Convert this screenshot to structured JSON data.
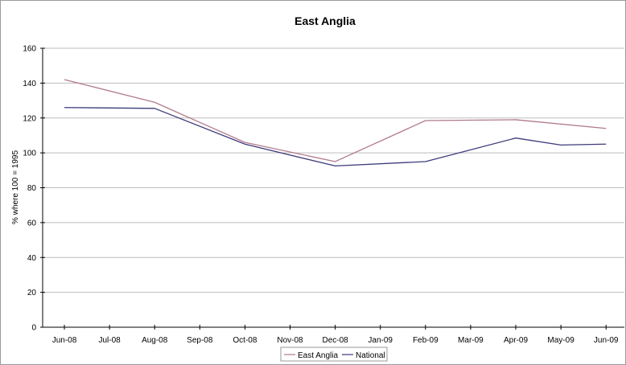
{
  "chart_data": {
    "type": "line",
    "title": "East Anglia",
    "xlabel": "",
    "ylabel": "% where 100 = 1995",
    "ylim": [
      0,
      160
    ],
    "yticks": [
      0,
      20,
      40,
      60,
      80,
      100,
      120,
      140,
      160
    ],
    "grid": true,
    "legend_position": "bottom-center",
    "categories": [
      "Jun-08",
      "Jul-08",
      "Aug-08",
      "Sep-08",
      "Oct-08",
      "Nov-08",
      "Dec-08",
      "Jan-09",
      "Feb-09",
      "Mar-09",
      "Apr-09",
      "May-09",
      "Jun-09"
    ],
    "series": [
      {
        "name": "East Anglia",
        "color": "#b07a8c",
        "points": [
          {
            "x": "Jun-08",
            "y": 142
          },
          {
            "x": "Aug-08",
            "y": 129
          },
          {
            "x": "Oct-08",
            "y": 106
          },
          {
            "x": "Dec-08",
            "y": 95
          },
          {
            "x": "Feb-09",
            "y": 118.5
          },
          {
            "x": "Apr-09",
            "y": 119
          },
          {
            "x": "Jun-09",
            "y": 114
          }
        ]
      },
      {
        "name": "National",
        "color": "#3c3a7a",
        "points": [
          {
            "x": "Jun-08",
            "y": 126
          },
          {
            "x": "Aug-08",
            "y": 125.5
          },
          {
            "x": "Oct-08",
            "y": 105
          },
          {
            "x": "Dec-08",
            "y": 92.5
          },
          {
            "x": "Feb-09",
            "y": 95
          },
          {
            "x": "Apr-09",
            "y": 108.5
          },
          {
            "x": "May-09",
            "y": 104.5
          },
          {
            "x": "Jun-09",
            "y": 105
          }
        ]
      }
    ]
  }
}
